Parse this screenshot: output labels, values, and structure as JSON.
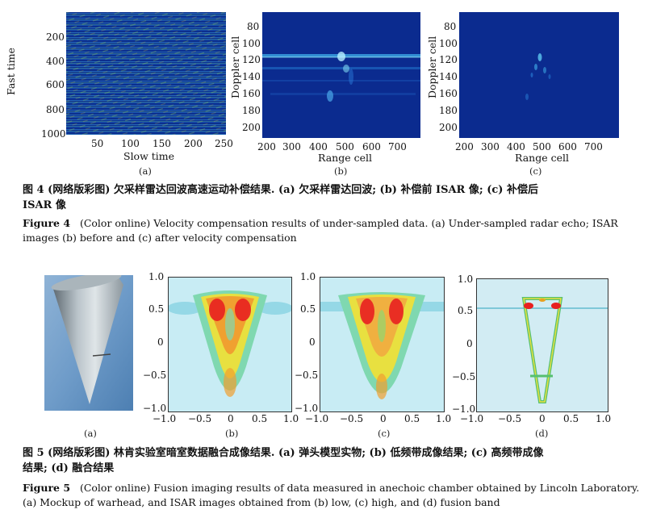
{
  "figure4": {
    "panel_a": {
      "ylabel": "Fast time",
      "xlabel": "Slow time",
      "yticks": [
        "200",
        "400",
        "600",
        "800",
        "1000"
      ],
      "xticks": [
        "50",
        "100",
        "150",
        "200",
        "250"
      ],
      "sub": "(a)"
    },
    "panel_b": {
      "ylabel": "Doppler cell",
      "xlabel": "Range cell",
      "yticks": [
        "80",
        "100",
        "120",
        "140",
        "160",
        "180",
        "200"
      ],
      "xticks": [
        "200",
        "300",
        "400",
        "500",
        "600",
        "700"
      ],
      "sub": "(b)"
    },
    "panel_c": {
      "ylabel": "Doppler cell",
      "xlabel": "Range cell",
      "yticks": [
        "80",
        "100",
        "120",
        "140",
        "160",
        "180",
        "200"
      ],
      "xticks": [
        "200",
        "300",
        "400",
        "500",
        "600",
        "700"
      ],
      "sub": "(c)"
    },
    "caption_cn_line1": "图 4  (网络版彩图) 欠采样雷达回波高速运动补偿结果. (a) 欠采样雷达回波; (b) 补偿前 ISAR 像; (c) 补偿后",
    "caption_cn_line2": "ISAR 像",
    "caption_en_label": "Figure 4",
    "caption_en_line1": "(Color online) Velocity compensation results of under-sampled data.  (a) Under-sampled radar echo; ISAR",
    "caption_en_line2": "images (b) before and (c) after velocity compensation"
  },
  "figure5": {
    "yticks": [
      "1.0",
      "0.5",
      "0",
      "−0.5",
      "−1.0"
    ],
    "xticks": [
      "−1.0",
      "−0.5",
      "0",
      "0.5",
      "1.0"
    ],
    "sub_a": "(a)",
    "sub_b": "(b)",
    "sub_c": "(c)",
    "sub_d": "(d)",
    "caption_cn_line1": "图 5  (网络版彩图) 林肯实验室暗室数据融合成像结果. (a) 弹头模型实物; (b) 低频带成像结果; (c) 高频带成像",
    "caption_cn_line2": "结果; (d) 融合结果",
    "caption_en_label": "Figure 5",
    "caption_en_line1": "(Color online) Fusion imaging results of data measured in anechoic chamber obtained by Lincoln Laboratory.",
    "caption_en_line2": "(a) Mockup of warhead, and ISAR images obtained from (b) low, (c) high, and (d) fusion band"
  },
  "colors": {
    "jet_bg": "#0b2b8f",
    "jet_dark": "#061f6e",
    "light_cyan": "#bfe6f0"
  }
}
